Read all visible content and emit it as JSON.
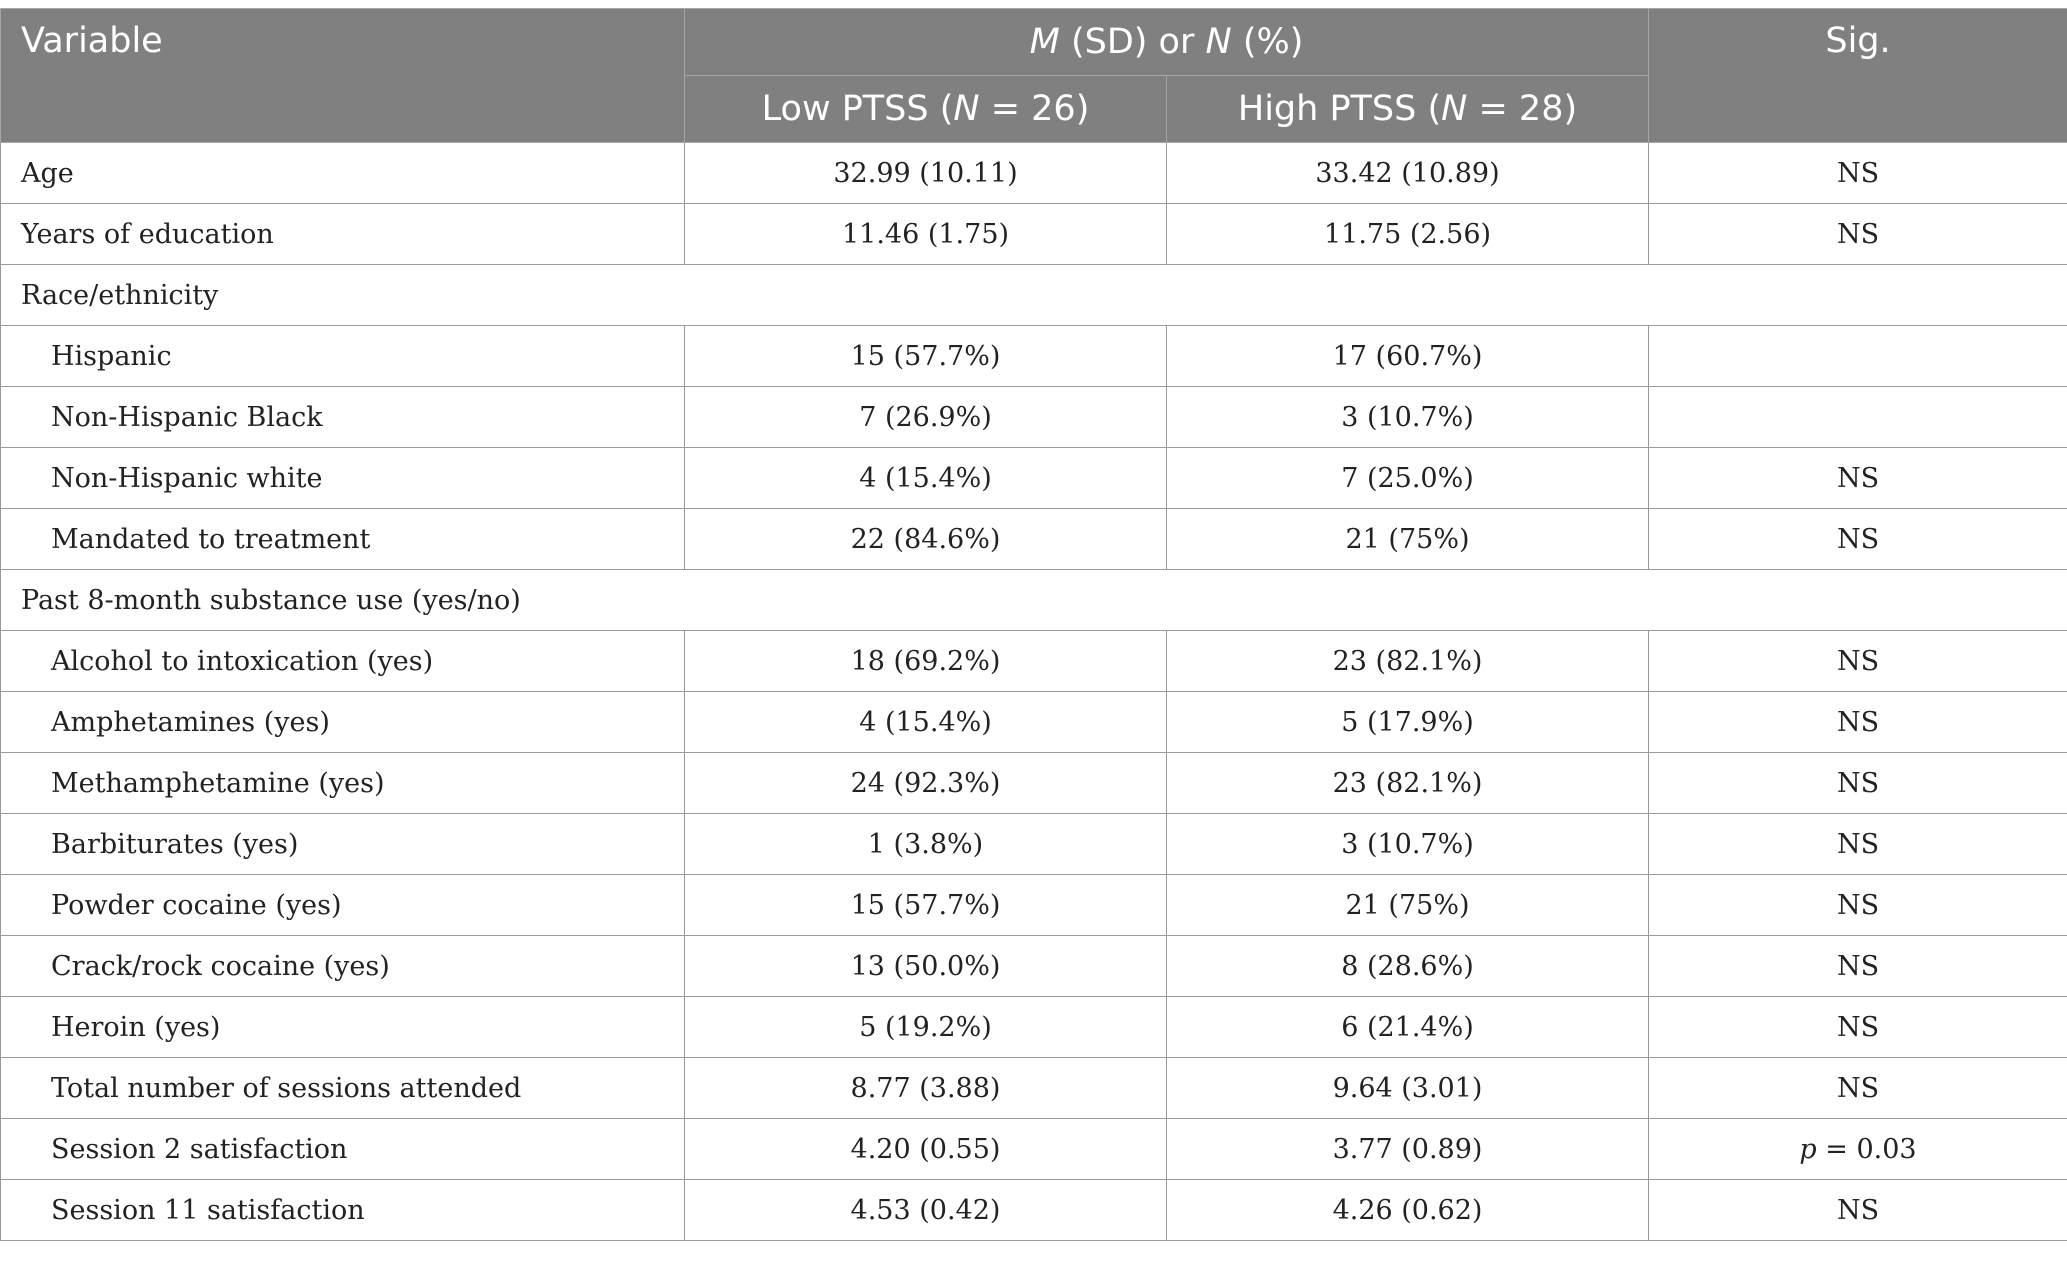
{
  "header": {
    "variable": "Variable",
    "group_m": "M",
    "group_mid": " (SD) or ",
    "group_n": "N",
    "group_end": " (%)",
    "sig": "Sig.",
    "low_pre": "Low PTSS (",
    "low_n": "N",
    "low_post": " = 26)",
    "high_pre": "High PTSS (",
    "high_n": "N",
    "high_post": " = 28)"
  },
  "rows": [
    {
      "label": "Age",
      "low": "32.99 (10.11)",
      "high": "33.42 (10.89)",
      "sig": "NS"
    },
    {
      "label": "Years of education",
      "low": "11.46 (1.75)",
      "high": "11.75 (2.56)",
      "sig": "NS"
    },
    {
      "label": "Race/ethnicity"
    },
    {
      "label": "Hispanic",
      "low": "15 (57.7%)",
      "high": "17 (60.7%)",
      "sig": ""
    },
    {
      "label": "Non-Hispanic Black",
      "low": "7 (26.9%)",
      "high": "3 (10.7%)",
      "sig": ""
    },
    {
      "label": "Non-Hispanic white",
      "low": "4 (15.4%)",
      "high": "7 (25.0%)",
      "sig": "NS"
    },
    {
      "label": "Mandated to treatment",
      "low": "22 (84.6%)",
      "high": "21 (75%)",
      "sig": "NS"
    },
    {
      "label": "Past 8-month substance use (yes/no)"
    },
    {
      "label": "Alcohol to intoxication (yes)",
      "low": "18 (69.2%)",
      "high": "23 (82.1%)",
      "sig": "NS"
    },
    {
      "label": "Amphetamines (yes)",
      "low": "4 (15.4%)",
      "high": "5 (17.9%)",
      "sig": "NS"
    },
    {
      "label": "Methamphetamine (yes)",
      "low": "24 (92.3%)",
      "high": "23 (82.1%)",
      "sig": "NS"
    },
    {
      "label": "Barbiturates (yes)",
      "low": "1 (3.8%)",
      "high": "3 (10.7%)",
      "sig": "NS"
    },
    {
      "label": "Powder cocaine (yes)",
      "low": "15 (57.7%)",
      "high": "21 (75%)",
      "sig": "NS"
    },
    {
      "label": "Crack/rock cocaine (yes)",
      "low": "13 (50.0%)",
      "high": "8 (28.6%)",
      "sig": "NS"
    },
    {
      "label": "Heroin (yes)",
      "low": "5 (19.2%)",
      "high": "6 (21.4%)",
      "sig": "NS"
    },
    {
      "label": "Total number of sessions attended",
      "low": "8.77 (3.88)",
      "high": "9.64 (3.01)",
      "sig": "NS"
    },
    {
      "label": "Session 2 satisfaction",
      "low": "4.20 (0.55)",
      "high": "3.77 (0.89)",
      "sig_p": "p",
      "sig_rest": " = 0.03"
    },
    {
      "label": "Session 11 satisfaction",
      "low": "4.53 (0.42)",
      "high": "4.26 (0.62)",
      "sig": "NS"
    }
  ]
}
